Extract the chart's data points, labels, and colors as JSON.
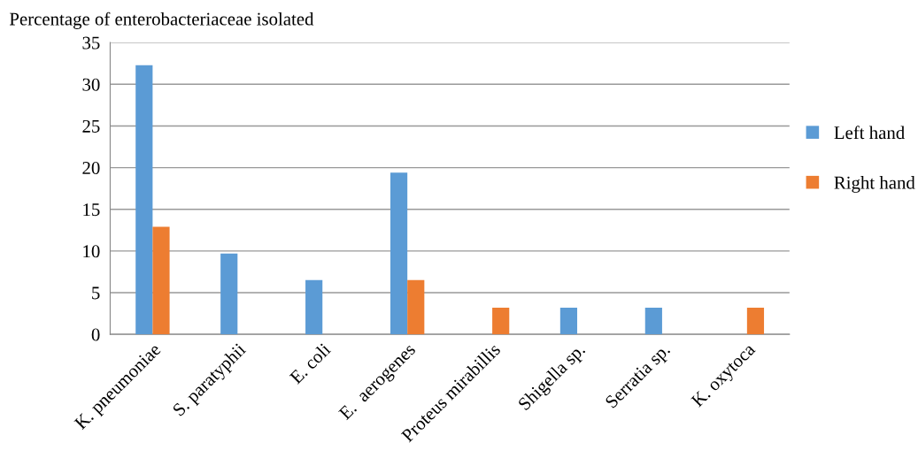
{
  "chart_data": {
    "type": "bar",
    "title": "Percentage of enterobacteriaceae isolated",
    "categories": [
      "K. pneumoniae",
      "S. paratyphii",
      "E. coli",
      "E.  aerogenes",
      "Proteus mirabillis",
      "Shigella sp.",
      "Serratia sp.",
      "K. oxytoca"
    ],
    "series": [
      {
        "name": "Left hand",
        "color": "#5b9bd5",
        "values": [
          32.3,
          9.7,
          6.5,
          19.4,
          0,
          3.2,
          3.2,
          0
        ]
      },
      {
        "name": "Right hand",
        "color": "#ed7d31",
        "values": [
          12.9,
          0,
          0,
          6.5,
          3.2,
          0,
          0,
          3.2
        ]
      }
    ],
    "ylim": [
      0,
      35
    ],
    "yticks": [
      0,
      5,
      10,
      15,
      20,
      25,
      30,
      35
    ],
    "grid": "y",
    "legend": "right"
  }
}
